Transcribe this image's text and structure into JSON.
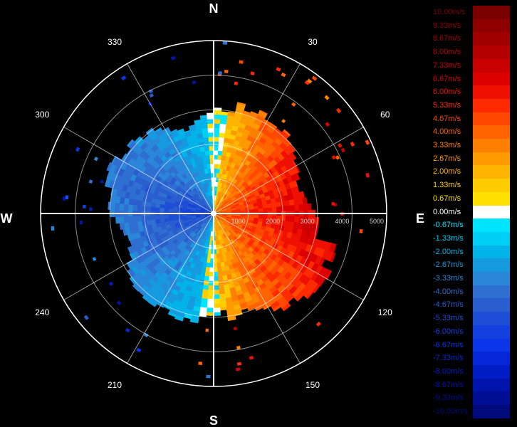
{
  "chart_data": {
    "type": "heatmap",
    "subtype": "polar radial-velocity (PPI) plot",
    "compass": {
      "north": "N",
      "east": "E",
      "south": "S",
      "west": "W"
    },
    "azimuth_labels": [
      "30",
      "60",
      "120",
      "150",
      "210",
      "240",
      "300",
      "330"
    ],
    "azimuth_label_values": [
      30,
      60,
      120,
      150,
      210,
      240,
      300,
      330
    ],
    "range_ticks": [
      "1000",
      "2000",
      "3000",
      "4000",
      "5000"
    ],
    "range_tick_values": [
      1000,
      2000,
      3000,
      4000,
      5000
    ],
    "range_max": 5000,
    "grid": true,
    "legend_position": "right",
    "colorbar": {
      "labels": [
        "10.00m/s",
        "9.33m/s",
        "8.67m/s",
        "8.00m/s",
        "7.33m/s",
        "6.67m/s",
        "6.00m/s",
        "5.33m/s",
        "4.67m/s",
        "4.00m/s",
        "3.33m/s",
        "2.67m/s",
        "2.00m/s",
        "1.33m/s",
        "0.67m/s",
        "0.00m/s",
        "-0.67m/s",
        "-1.33m/s",
        "-2.00m/s",
        "-2.67m/s",
        "-3.33m/s",
        "-4.00m/s",
        "-4.67m/s",
        "-5.33m/s",
        "-6.00m/s",
        "-6.67m/s",
        "-7.33m/s",
        "-8.00m/s",
        "-8.67m/s",
        "-9.33m/s",
        "-10.00m/s"
      ],
      "values": [
        10.0,
        9.33,
        8.67,
        8.0,
        7.33,
        6.67,
        6.0,
        5.33,
        4.67,
        4.0,
        3.33,
        2.67,
        2.0,
        1.33,
        0.67,
        0.0,
        -0.67,
        -1.33,
        -2.0,
        -2.67,
        -3.33,
        -4.0,
        -4.67,
        -5.33,
        -6.0,
        -6.67,
        -7.33,
        -8.0,
        -8.67,
        -9.33,
        -10.0
      ],
      "colors": [
        "#7a0000",
        "#8e0000",
        "#a00000",
        "#b50000",
        "#c80000",
        "#dc0000",
        "#ee1000",
        "#ff2a00",
        "#ff4800",
        "#ff6400",
        "#ff7f00",
        "#ff9a00",
        "#ffb400",
        "#ffcc00",
        "#ffe000",
        "#ffffff",
        "#00e5ff",
        "#00cff5",
        "#00b4ea",
        "#159ae0",
        "#2a86d8",
        "#2f6fd2",
        "#2a5ecf",
        "#1e4ed6",
        "#1440e0",
        "#0a35e8",
        "#0428d8",
        "#001cc4",
        "#0014ac",
        "#000e94",
        "#000a7a"
      ]
    },
    "data_shape": "roughly circular echo to ~3500 m; eastern half positive (approaching red/orange), western half negative (receding blue), near-zero light-blue/yellow band along the N–S line",
    "approx_velocity_field": {
      "east_sector_range_m": [
        0,
        3500
      ],
      "east_velocity_ms": [
        2.0,
        7.33
      ],
      "west_sector_range_m": [
        0,
        3500
      ],
      "west_velocity_ms": [
        -2.0,
        -6.67
      ],
      "north_south_band_velocity_ms": [
        -1.33,
        1.33
      ]
    }
  }
}
